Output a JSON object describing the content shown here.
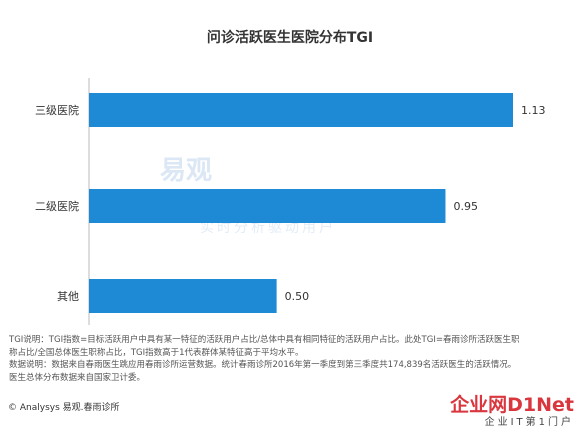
{
  "chart_data": {
    "type": "bar",
    "orientation": "horizontal",
    "title": "问诊活跃医生医院分布TGI",
    "categories": [
      "三级医院",
      "二级医院",
      "其他"
    ],
    "values": [
      1.13,
      0.95,
      0.5
    ],
    "value_labels": [
      "1.13",
      "0.95",
      "0.50"
    ],
    "xlabel": "",
    "ylabel": "",
    "xlim": [
      0,
      1.3
    ],
    "grid": false,
    "bar_color": "#1e8ad6"
  },
  "notes": [
    "TGI说明：TGI指数=目标活跃用户中具有某一特征的活跃用户占比/总体中具有相同特征的活跃用户占比。此处TGI=春雨诊所活跃医生职",
    "称占比/全国总体医生职称占比，TGI指数高于1代表群体某特征高于平均水平。",
    "数据说明：数据来自春雨医生跳应用春雨诊所运营数据。统计春雨诊所2016年第一季度到第三季度共174,839名活跃医生的活跃情况。",
    "医生总体分布数据来自国家卫计委。"
  ],
  "footer": {
    "source": "© Analysys 易观.春雨诊所"
  },
  "watermark": {
    "main": "易观",
    "sub": "实时分析驱动用户"
  },
  "brand": {
    "name": "企业网D1Net",
    "tagline": "企业IT第1门户"
  }
}
